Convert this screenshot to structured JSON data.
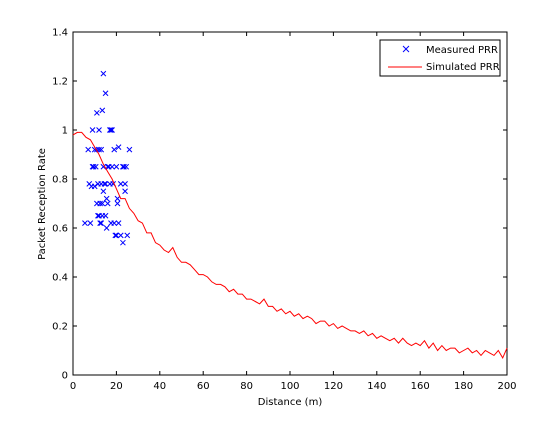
{
  "chart_data": {
    "type": "scatter",
    "title": "",
    "xlabel": "Distance (m)",
    "ylabel": "Packet Reception Rate",
    "xlim": [
      0,
      200
    ],
    "ylim": [
      0,
      1.4
    ],
    "xticks": [
      0,
      20,
      40,
      60,
      80,
      100,
      120,
      140,
      160,
      180,
      200
    ],
    "yticks": [
      0,
      0.2,
      0.4,
      0.6,
      0.8,
      1,
      1.2,
      1.4
    ],
    "xtick_labels": [
      "0",
      "20",
      "40",
      "60",
      "80",
      "100",
      "120",
      "140",
      "160",
      "180",
      "200"
    ],
    "ytick_labels": [
      "0",
      "0.2",
      "0.4",
      "0.6",
      "0.8",
      "1",
      "1.2",
      "1.4"
    ],
    "grid": false,
    "legend_position": "top-right",
    "series": [
      {
        "name": "Measured PRR",
        "kind": "scatter",
        "marker": "x",
        "color": "#0000ff",
        "points": [
          [
            5.5,
            0.62
          ],
          [
            7,
            0.92
          ],
          [
            7.5,
            0.78
          ],
          [
            8,
            0.62
          ],
          [
            8.5,
            0.77
          ],
          [
            9,
            1.0
          ],
          [
            9,
            0.85
          ],
          [
            9.5,
            0.85
          ],
          [
            10,
            0.77
          ],
          [
            10,
            0.92
          ],
          [
            10.5,
            0.85
          ],
          [
            11,
            1.07
          ],
          [
            11,
            0.92
          ],
          [
            11,
            0.7
          ],
          [
            11.5,
            0.65
          ],
          [
            11.5,
            0.78
          ],
          [
            12,
            1.0
          ],
          [
            12,
            0.92
          ],
          [
            12,
            0.65
          ],
          [
            12.5,
            0.7
          ],
          [
            12.5,
            0.62
          ],
          [
            13,
            0.92
          ],
          [
            13,
            0.78
          ],
          [
            13,
            0.62
          ],
          [
            13.5,
            1.08
          ],
          [
            13.5,
            0.65
          ],
          [
            13.5,
            0.7
          ],
          [
            14,
            1.23
          ],
          [
            14,
            0.85
          ],
          [
            14,
            0.75
          ],
          [
            14.5,
            0.78
          ],
          [
            15,
            1.15
          ],
          [
            15,
            0.78
          ],
          [
            15,
            0.65
          ],
          [
            15.5,
            0.72
          ],
          [
            15.5,
            0.6
          ],
          [
            16,
            0.85
          ],
          [
            16,
            0.7
          ],
          [
            16.5,
            0.85
          ],
          [
            17,
            1.0
          ],
          [
            17,
            0.78
          ],
          [
            17.5,
            1.0
          ],
          [
            17.5,
            0.62
          ],
          [
            18,
            0.85
          ],
          [
            18,
            1.0
          ],
          [
            18.5,
            0.78
          ],
          [
            19,
            0.92
          ],
          [
            19,
            0.62
          ],
          [
            19.5,
            0.57
          ],
          [
            20,
            0.85
          ],
          [
            20,
            0.57
          ],
          [
            20.5,
            0.72
          ],
          [
            20.5,
            0.7
          ],
          [
            21,
            0.93
          ],
          [
            21,
            0.62
          ],
          [
            22,
            0.78
          ],
          [
            22,
            0.57
          ],
          [
            23,
            0.85
          ],
          [
            23,
            0.54
          ],
          [
            23.5,
            0.85
          ],
          [
            24,
            0.78
          ],
          [
            24,
            0.75
          ],
          [
            24.5,
            0.85
          ],
          [
            25,
            0.57
          ],
          [
            26,
            0.92
          ]
        ]
      },
      {
        "name": "Simulated PRR",
        "kind": "line",
        "color": "#ff0000",
        "x": [
          0,
          2,
          4,
          6,
          8,
          10,
          12,
          14,
          16,
          18,
          20,
          22,
          24,
          26,
          28,
          30,
          32,
          34,
          36,
          38,
          40,
          42,
          44,
          46,
          48,
          50,
          52,
          54,
          56,
          58,
          60,
          62,
          64,
          66,
          68,
          70,
          72,
          74,
          76,
          78,
          80,
          82,
          84,
          86,
          88,
          90,
          92,
          94,
          96,
          98,
          100,
          102,
          104,
          106,
          108,
          110,
          112,
          114,
          116,
          118,
          120,
          122,
          124,
          126,
          128,
          130,
          132,
          134,
          136,
          138,
          140,
          142,
          144,
          146,
          148,
          150,
          152,
          154,
          156,
          158,
          160,
          162,
          164,
          166,
          168,
          170,
          172,
          174,
          176,
          178,
          180,
          182,
          184,
          186,
          188,
          190,
          192,
          194,
          196,
          198,
          200
        ],
        "y": [
          0.98,
          0.99,
          0.99,
          0.97,
          0.96,
          0.93,
          0.9,
          0.86,
          0.83,
          0.8,
          0.76,
          0.72,
          0.72,
          0.68,
          0.66,
          0.63,
          0.62,
          0.58,
          0.58,
          0.54,
          0.53,
          0.51,
          0.5,
          0.52,
          0.48,
          0.46,
          0.46,
          0.45,
          0.43,
          0.41,
          0.41,
          0.4,
          0.38,
          0.37,
          0.37,
          0.36,
          0.34,
          0.35,
          0.33,
          0.33,
          0.31,
          0.31,
          0.3,
          0.29,
          0.31,
          0.28,
          0.28,
          0.26,
          0.27,
          0.25,
          0.26,
          0.24,
          0.25,
          0.23,
          0.24,
          0.23,
          0.21,
          0.22,
          0.22,
          0.2,
          0.21,
          0.19,
          0.2,
          0.19,
          0.18,
          0.18,
          0.17,
          0.18,
          0.16,
          0.17,
          0.15,
          0.16,
          0.15,
          0.14,
          0.15,
          0.13,
          0.15,
          0.13,
          0.12,
          0.13,
          0.12,
          0.14,
          0.11,
          0.13,
          0.1,
          0.12,
          0.1,
          0.11,
          0.11,
          0.09,
          0.1,
          0.11,
          0.09,
          0.1,
          0.08,
          0.1,
          0.09,
          0.08,
          0.1,
          0.07,
          0.11
        ]
      }
    ]
  }
}
